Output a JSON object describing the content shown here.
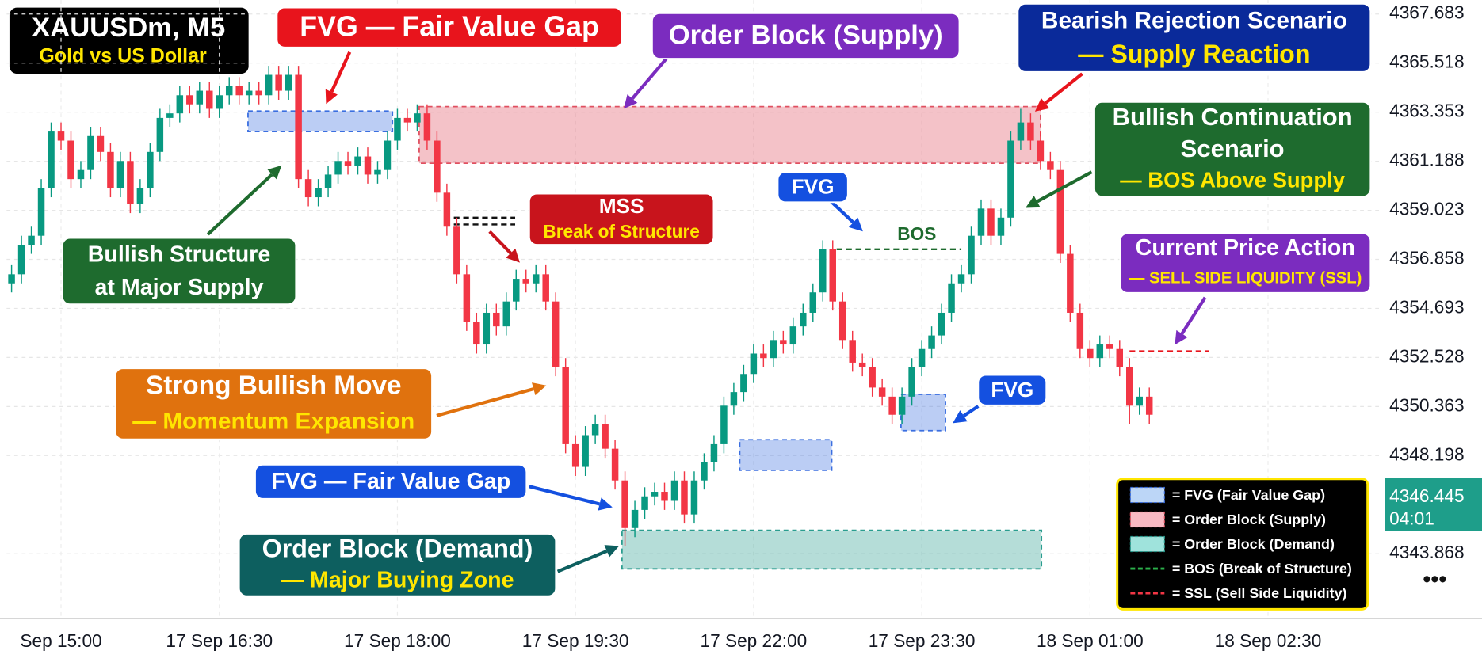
{
  "chart_data": {
    "type": "candlestick",
    "title": "XAUUSDm, M5",
    "subtitle": "Gold vs US Dollar",
    "up_color": "#089981",
    "down_color": "#f23645",
    "grid": true,
    "xlim": [
      -0.5,
      138.5
    ],
    "xticks": [
      {
        "value": 5,
        "label": "Sep 15:00"
      },
      {
        "value": 21,
        "label": "17 Sep 16:30"
      },
      {
        "value": 39,
        "label": "17 Sep 18:00"
      },
      {
        "value": 57,
        "label": "17 Sep 19:30"
      },
      {
        "value": 75,
        "label": "17 Sep 22:00"
      },
      {
        "value": 92,
        "label": "17 Sep 23:30"
      },
      {
        "value": 109,
        "label": "18 Sep 01:00"
      },
      {
        "value": 127,
        "label": "18 Sep 02:30"
      }
    ],
    "ylim": [
      4341.0,
      4368.3
    ],
    "yticks": [
      4367.683,
      4365.518,
      4363.353,
      4361.188,
      4359.023,
      4356.858,
      4354.693,
      4352.528,
      4350.363,
      4348.198,
      4343.868
    ],
    "current_price": 4346.445,
    "countdown": "04:01",
    "open": [
      4355.8,
      4356.2,
      4357.5,
      4357.9,
      4360.0,
      4362.5,
      4362.1,
      4360.4,
      4360.8,
      4362.3,
      4361.6,
      4360.0,
      4361.2,
      4359.3,
      4360.0,
      4361.6,
      4363.1,
      4363.3,
      4364.1,
      4363.7,
      4364.3,
      4363.5,
      4364.1,
      4364.5,
      4364.1,
      4364.3,
      4364.1,
      4365.0,
      4364.3,
      4365.0,
      4360.4,
      4359.6,
      4360.0,
      4360.6,
      4361.2,
      4361.0,
      4361.4,
      4360.6,
      4360.8,
      4362.1,
      4363.1,
      4362.9,
      4363.3,
      4362.1,
      4359.8,
      4358.3,
      4356.2,
      4354.1,
      4353.1,
      4354.5,
      4353.9,
      4355.0,
      4356.0,
      4355.8,
      4356.2,
      4355.0,
      4352.1,
      4348.7,
      4347.7,
      4349.1,
      4349.6,
      4348.5,
      4347.1,
      4345.0,
      4345.8,
      4346.4,
      4346.6,
      4346.2,
      4347.1,
      4345.6,
      4347.1,
      4347.9,
      4348.7,
      4350.4,
      4351.0,
      4351.8,
      4352.7,
      4352.5,
      4353.3,
      4353.1,
      4353.9,
      4354.5,
      4355.4,
      4357.3,
      4355.0,
      4353.3,
      4352.3,
      4352.1,
      4351.2,
      4350.8,
      4350.0,
      4350.8,
      4352.1,
      4352.9,
      4353.5,
      4354.5,
      4355.8,
      4356.2,
      4357.9,
      4359.1,
      4357.9,
      4358.7,
      4362.1,
      4362.9,
      4362.1,
      4361.2,
      4360.8,
      4357.1,
      4354.5,
      4352.9,
      4352.5,
      4353.1,
      4352.9,
      4352.1,
      4350.4,
      4350.8
    ],
    "high": [
      4356.6,
      4357.9,
      4358.3,
      4360.4,
      4362.9,
      4362.9,
      4362.5,
      4361.2,
      4362.7,
      4362.7,
      4362.0,
      4361.6,
      4361.6,
      4360.4,
      4362.0,
      4363.5,
      4363.7,
      4364.5,
      4364.5,
      4364.7,
      4364.7,
      4364.5,
      4364.9,
      4364.9,
      4364.7,
      4364.7,
      4365.4,
      4365.4,
      4365.4,
      4365.4,
      4360.8,
      4360.4,
      4361.0,
      4361.6,
      4361.6,
      4361.8,
      4361.8,
      4361.2,
      4362.5,
      4363.5,
      4363.5,
      4363.7,
      4363.7,
      4362.5,
      4360.2,
      4358.7,
      4356.6,
      4354.5,
      4354.9,
      4354.9,
      4355.4,
      4356.4,
      4356.4,
      4356.6,
      4356.6,
      4355.4,
      4352.5,
      4349.1,
      4349.5,
      4350.0,
      4350.0,
      4348.9,
      4347.5,
      4346.2,
      4346.8,
      4347.0,
      4347.0,
      4347.5,
      4347.5,
      4347.5,
      4348.3,
      4349.1,
      4350.8,
      4351.4,
      4352.2,
      4353.1,
      4353.1,
      4353.7,
      4353.7,
      4354.3,
      4354.9,
      4355.8,
      4357.7,
      4357.7,
      4355.4,
      4353.7,
      4352.7,
      4352.5,
      4351.6,
      4351.2,
      4351.2,
      4352.5,
      4353.3,
      4353.9,
      4354.9,
      4356.2,
      4356.6,
      4358.3,
      4359.5,
      4359.5,
      4359.1,
      4362.5,
      4363.5,
      4363.3,
      4362.5,
      4361.6,
      4361.2,
      4357.5,
      4354.9,
      4353.3,
      4353.5,
      4353.5,
      4353.3,
      4352.5,
      4351.2,
      4351.2
    ],
    "low": [
      4355.4,
      4355.8,
      4357.1,
      4357.5,
      4359.6,
      4361.7,
      4360.0,
      4360.0,
      4360.4,
      4361.2,
      4359.6,
      4359.6,
      4358.9,
      4358.9,
      4359.6,
      4361.2,
      4362.7,
      4362.9,
      4363.3,
      4363.3,
      4363.1,
      4363.1,
      4363.7,
      4363.7,
      4363.7,
      4363.7,
      4363.7,
      4363.9,
      4363.9,
      4360.0,
      4359.2,
      4359.2,
      4359.6,
      4360.2,
      4360.6,
      4360.6,
      4360.2,
      4360.2,
      4360.4,
      4361.7,
      4362.5,
      4362.5,
      4361.7,
      4359.4,
      4357.9,
      4355.8,
      4353.7,
      4352.7,
      4352.7,
      4353.5,
      4353.5,
      4354.6,
      4355.4,
      4355.4,
      4354.6,
      4351.7,
      4348.3,
      4347.3,
      4347.3,
      4348.7,
      4348.1,
      4346.7,
      4344.2,
      4344.6,
      4345.4,
      4346.0,
      4345.8,
      4345.8,
      4345.2,
      4345.2,
      4346.7,
      4347.5,
      4348.3,
      4350.0,
      4350.6,
      4351.4,
      4352.1,
      4352.1,
      4352.7,
      4352.7,
      4353.5,
      4354.1,
      4355.0,
      4354.6,
      4352.9,
      4351.9,
      4351.7,
      4350.8,
      4350.4,
      4349.6,
      4349.6,
      4350.4,
      4351.7,
      4352.5,
      4353.1,
      4354.1,
      4355.4,
      4355.8,
      4357.5,
      4357.5,
      4357.5,
      4358.3,
      4361.7,
      4361.7,
      4360.8,
      4360.4,
      4356.7,
      4354.1,
      4352.5,
      4352.1,
      4352.1,
      4352.5,
      4351.7,
      4349.6,
      4350.0,
      4349.6
    ],
    "close": [
      4356.2,
      4357.5,
      4357.9,
      4360.0,
      4362.5,
      4362.1,
      4360.4,
      4360.8,
      4362.3,
      4361.6,
      4360.0,
      4361.2,
      4359.3,
      4360.0,
      4361.6,
      4363.1,
      4363.3,
      4364.1,
      4363.7,
      4364.3,
      4363.5,
      4364.1,
      4364.5,
      4364.1,
      4364.3,
      4364.1,
      4365.0,
      4364.3,
      4365.0,
      4360.4,
      4359.6,
      4360.0,
      4360.6,
      4361.2,
      4361.0,
      4361.4,
      4360.6,
      4360.8,
      4362.1,
      4363.1,
      4362.9,
      4363.3,
      4362.1,
      4359.8,
      4358.3,
      4356.2,
      4354.1,
      4353.1,
      4354.5,
      4353.9,
      4355.0,
      4356.0,
      4355.8,
      4356.2,
      4355.0,
      4352.1,
      4348.7,
      4347.7,
      4349.1,
      4349.6,
      4348.5,
      4347.1,
      4345.0,
      4345.8,
      4346.4,
      4346.6,
      4346.2,
      4347.1,
      4345.6,
      4347.1,
      4347.9,
      4348.7,
      4350.4,
      4351.0,
      4351.8,
      4352.7,
      4352.5,
      4353.3,
      4353.1,
      4353.9,
      4354.5,
      4355.4,
      4357.3,
      4355.0,
      4353.3,
      4352.3,
      4352.1,
      4351.2,
      4350.8,
      4350.0,
      4350.8,
      4352.1,
      4352.9,
      4353.5,
      4354.5,
      4355.8,
      4356.2,
      4357.9,
      4359.1,
      4357.9,
      4358.7,
      4362.1,
      4362.9,
      4362.1,
      4361.2,
      4360.8,
      4357.1,
      4354.5,
      4352.9,
      4352.5,
      4353.1,
      4352.9,
      4352.1,
      4350.4,
      4350.8,
      4350.0
    ],
    "zones": [
      {
        "from": 23.9,
        "to": 38.5,
        "top": 4363.4,
        "bottom": 4362.5,
        "color": "#3b6fe0"
      },
      {
        "from": 41.2,
        "to": 104,
        "top": 4363.6,
        "bottom": 4361.1,
        "color": "#e05060"
      },
      {
        "from": 73.6,
        "to": 82.9,
        "top": 4348.9,
        "bottom": 4347.55,
        "color": "#3b6fe0"
      },
      {
        "from": 89.9,
        "to": 94.4,
        "top": 4350.9,
        "bottom": 4349.3,
        "color": "#3b6fe0"
      },
      {
        "from": 61.7,
        "to": 104.1,
        "top": 4344.9,
        "bottom": 4343.2,
        "color": "#2a9d8f"
      }
    ],
    "levels": [
      {
        "price": 4357.3,
        "from": 83.4,
        "to": 96,
        "color": "#1e6b2e"
      },
      {
        "price": 4358.7,
        "from": 44.7,
        "to": 50.9,
        "color": "#111111"
      },
      {
        "price": 4358.4,
        "from": 44.7,
        "to": 50.9,
        "color": "#111111"
      },
      {
        "price": 4352.8,
        "from": 113,
        "to": 121,
        "color": "#e8141c"
      }
    ],
    "annotations": [
      {
        "lines": [
          "FVG — Fair Value Gap"
        ]
      },
      {
        "lines": [
          "Order Block (Supply)"
        ]
      },
      {
        "lines": [
          "Bearish Rejection Scenario",
          "— Supply Reaction"
        ]
      },
      {
        "lines": [
          "Bullish Continuation",
          "Scenario",
          "— BOS Above Supply"
        ]
      },
      {
        "lines": [
          "FVG"
        ]
      },
      {
        "lines": [
          "BOS"
        ]
      },
      {
        "lines": [
          "MSS",
          "Break of Structure"
        ]
      },
      {
        "lines": [
          "Bullish Structure",
          "at Major Supply"
        ]
      },
      {
        "lines": [
          "Current Price Action",
          "— SELL SIDE LIQUIDITY (SSL)"
        ]
      },
      {
        "lines": [
          "Strong Bullish Move",
          "— Momentum Expansion"
        ]
      },
      {
        "lines": [
          "FVG"
        ]
      },
      {
        "lines": [
          "FVG — Fair Value Gap"
        ]
      },
      {
        "lines": [
          "Order Block (Demand)",
          "— Major Buying Zone"
        ]
      }
    ],
    "legend": [
      "= FVG (Fair Value Gap)",
      "= Order Block (Supply)",
      "= Order Block (Demand)",
      "= BOS (Break of Structure)",
      "= SSL (Sell Side Liquidity)"
    ]
  }
}
